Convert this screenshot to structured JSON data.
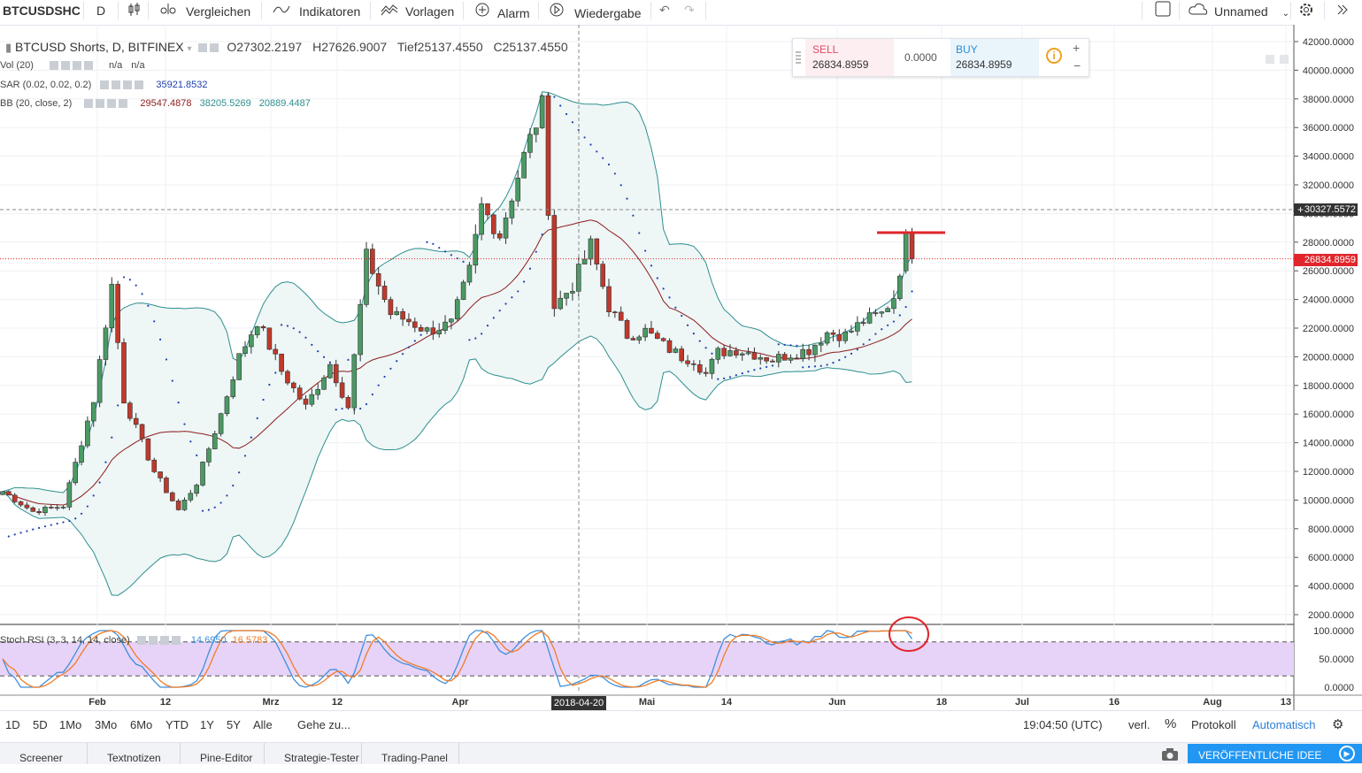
{
  "toolbar": {
    "symbol": "BTCUSDSHC",
    "interval": "D",
    "compare": "Vergleichen",
    "indicators": "Indikatoren",
    "templates": "Vorlagen",
    "alarm": "Alarm",
    "replay": "Wiedergabe",
    "layout_name": "Unnamed"
  },
  "legend": {
    "title": "BTCUSD Shorts, D, BITFINEX",
    "o_label": "O",
    "o": "27302.2197",
    "h_label": "H",
    "h": "27626.9007",
    "l_label": "Tief",
    "l": "25137.4550",
    "c_label": "C",
    "c": "25137.4550",
    "vol_label": "Vol (20)",
    "vol_a": "n/a",
    "vol_b": "n/a",
    "sar_label": "SAR (0.02, 0.02, 0.2)",
    "sar": "35921.8532",
    "bb_label": "BB (20, close, 2)",
    "bb_mid": "29547.4878",
    "bb_up": "38205.5269",
    "bb_low": "20889.4487",
    "stoch_label": "Stoch RSI (3, 3, 14, 14, close)",
    "stoch_k": "14.6950",
    "stoch_d": "16.5783"
  },
  "trade_panel": {
    "sell_label": "SELL",
    "sell_price": "26834.8959",
    "spread": "0.0000",
    "buy_label": "BUY",
    "buy_price": "26834.8959"
  },
  "price_axis": {
    "crosshair_price": "30327.5572",
    "last_price": "26834.8959"
  },
  "time_axis": {
    "crosshair_date": "2018-04-20"
  },
  "chart_data": {
    "type": "candlestick",
    "title": "BTCUSD Shorts, D, BITFINEX",
    "ylim": [
      1000,
      43000
    ],
    "y_ticks": [
      "42000.0000",
      "40000.0000",
      "38000.0000",
      "36000.0000",
      "34000.0000",
      "32000.0000",
      "30000.0000",
      "28000.0000",
      "26000.0000",
      "24000.0000",
      "22000.0000",
      "20000.0000",
      "18000.0000",
      "16000.0000",
      "14000.0000",
      "12000.0000",
      "10000.0000",
      "8000.0000",
      "6000.0000",
      "4000.0000",
      "2000.0000"
    ],
    "x_ticks": [
      "Feb",
      "12",
      "Mrz",
      "12",
      "Apr",
      "Mai",
      "14",
      "Jun",
      "18",
      "Jul",
      "16",
      "Aug",
      "13"
    ],
    "anchors": [
      [
        0,
        10600
      ],
      [
        5,
        9200
      ],
      [
        10,
        9600
      ],
      [
        15,
        17000
      ],
      [
        18,
        25000
      ],
      [
        20,
        17000
      ],
      [
        25,
        12000
      ],
      [
        29,
        9300
      ],
      [
        32,
        11200
      ],
      [
        36,
        16000
      ],
      [
        39,
        20000
      ],
      [
        42,
        22500
      ],
      [
        46,
        19000
      ],
      [
        50,
        16500
      ],
      [
        54,
        19500
      ],
      [
        57,
        16500
      ],
      [
        60,
        27000
      ],
      [
        64,
        23000
      ],
      [
        67,
        22500
      ],
      [
        70,
        21800
      ],
      [
        74,
        22300
      ],
      [
        77,
        26000
      ],
      [
        79,
        30500
      ],
      [
        82,
        28500
      ],
      [
        86,
        34000
      ],
      [
        89,
        37500
      ],
      [
        91,
        23500
      ],
      [
        94,
        25000
      ],
      [
        97,
        27800
      ],
      [
        100,
        23500
      ],
      [
        103,
        21500
      ],
      [
        106,
        21800
      ],
      [
        109,
        20800
      ],
      [
        112,
        20000
      ],
      [
        114,
        19800
      ],
      [
        116,
        18800
      ],
      [
        118,
        20300
      ],
      [
        121,
        20500
      ],
      [
        124,
        20200
      ],
      [
        127,
        19800
      ],
      [
        130,
        20200
      ],
      [
        133,
        20500
      ],
      [
        136,
        21700
      ],
      [
        139,
        21500
      ],
      [
        142,
        22500
      ],
      [
        145,
        23000
      ],
      [
        147,
        24200
      ],
      [
        149,
        28000
      ],
      [
        150,
        26834.9
      ]
    ],
    "sar_start": 7400,
    "stoch_ylim": [
      0,
      100
    ],
    "stoch_ticks": [
      "100.0000",
      "50.0000",
      "0.0000"
    ],
    "stoch_bands": [
      80,
      20
    ],
    "annotations": [
      "red-resistance-line",
      "red-circle-stoch"
    ]
  },
  "timeframes": [
    "1D",
    "5D",
    "1Mo",
    "3Mo",
    "6Mo",
    "YTD",
    "1Y",
    "5Y",
    "Alle"
  ],
  "goto_label": "Gehe zu...",
  "clock": "19:04:50 (UTC)",
  "scale_options": {
    "ext": "verl.",
    "pct": "%",
    "log": "Protokoll",
    "auto": "Automatisch"
  },
  "tabs": [
    "Screener",
    "Textnotizen",
    "Pine-Editor",
    "Strategie-Tester",
    "Trading-Panel"
  ],
  "publish_label": "VERÖFFENTLICHE IDEE",
  "colors": {
    "up": "#4a9a63",
    "down": "#c0392b",
    "band": "#2f8f8f",
    "band_fill": "#eef6f6",
    "sar": "#1f3fb0",
    "stoch_k": "#3f8fdc",
    "stoch_d": "#f07c28",
    "stoch_fill": "#e7d3f7",
    "resistance": "#e0262b",
    "last_price": "#e0262b"
  }
}
